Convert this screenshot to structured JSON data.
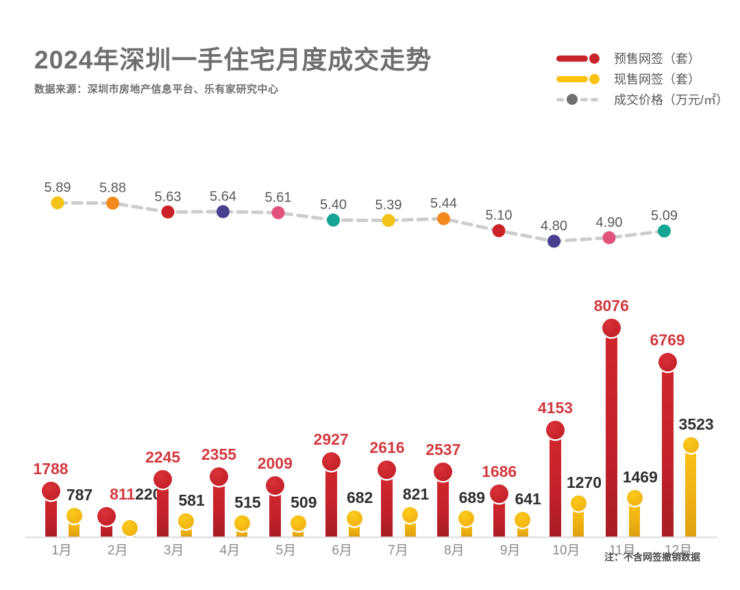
{
  "header": {
    "title": "2024年深圳一手住宅月度成交走势",
    "source": "数据来源：深圳市房地产信息平台、乐有家研究中心"
  },
  "legend": [
    {
      "label": "预售网签（套）",
      "type": "bar",
      "color": "#C8242B"
    },
    {
      "label": "现售网签（套）",
      "type": "bar",
      "color": "#FDC20F"
    },
    {
      "label": "成交价格（万元/㎡）",
      "type": "line",
      "dot_color": "#6E6E6E",
      "dash_color": "#CBCBCB"
    }
  ],
  "footnote": "注：不含网签撤销数据",
  "chart_data": {
    "type": "bar",
    "subtype": "grouped lollipop bars with dashed price line overlay",
    "title": "2024年深圳一手住宅月度成交走势",
    "categories": [
      "1月",
      "2月",
      "3月",
      "4月",
      "5月",
      "6月",
      "7月",
      "8月",
      "9月",
      "10月",
      "11月",
      "12月"
    ],
    "series": [
      {
        "name": "预售网签（套）",
        "type": "bar",
        "color": "#C9242B",
        "label_color": "#D13A40",
        "values": [
          1788,
          811,
          2245,
          2355,
          2009,
          2927,
          2616,
          2537,
          1686,
          4153,
          8076,
          6769
        ]
      },
      {
        "name": "现售网签（套）",
        "type": "bar",
        "color": "#F5BD11",
        "label_color": "#2E2E2E",
        "values": [
          787,
          220,
          581,
          515,
          509,
          682,
          821,
          689,
          641,
          1270,
          1469,
          3523
        ]
      },
      {
        "name": "成交价格（万元/㎡）",
        "type": "line",
        "line_color": "#CCCCCC",
        "line_style": "dashed",
        "label_color": "#58595B",
        "values": [
          5.89,
          5.88,
          5.63,
          5.64,
          5.61,
          5.4,
          5.39,
          5.44,
          5.1,
          4.8,
          4.9,
          5.09
        ],
        "point_colors": [
          "#F3C317",
          "#F28A1E",
          "#CB2229",
          "#46408F",
          "#E2537B",
          "#14A493",
          "#F3C317",
          "#F28A1E",
          "#CB2229",
          "#46408F",
          "#E2537B",
          "#14A493"
        ]
      }
    ],
    "value_axis_max": 8076,
    "price_axis_range": [
      4.8,
      5.89
    ],
    "grid": false,
    "legend_position": "top-right",
    "note": "注：不含网签撤销数据"
  }
}
